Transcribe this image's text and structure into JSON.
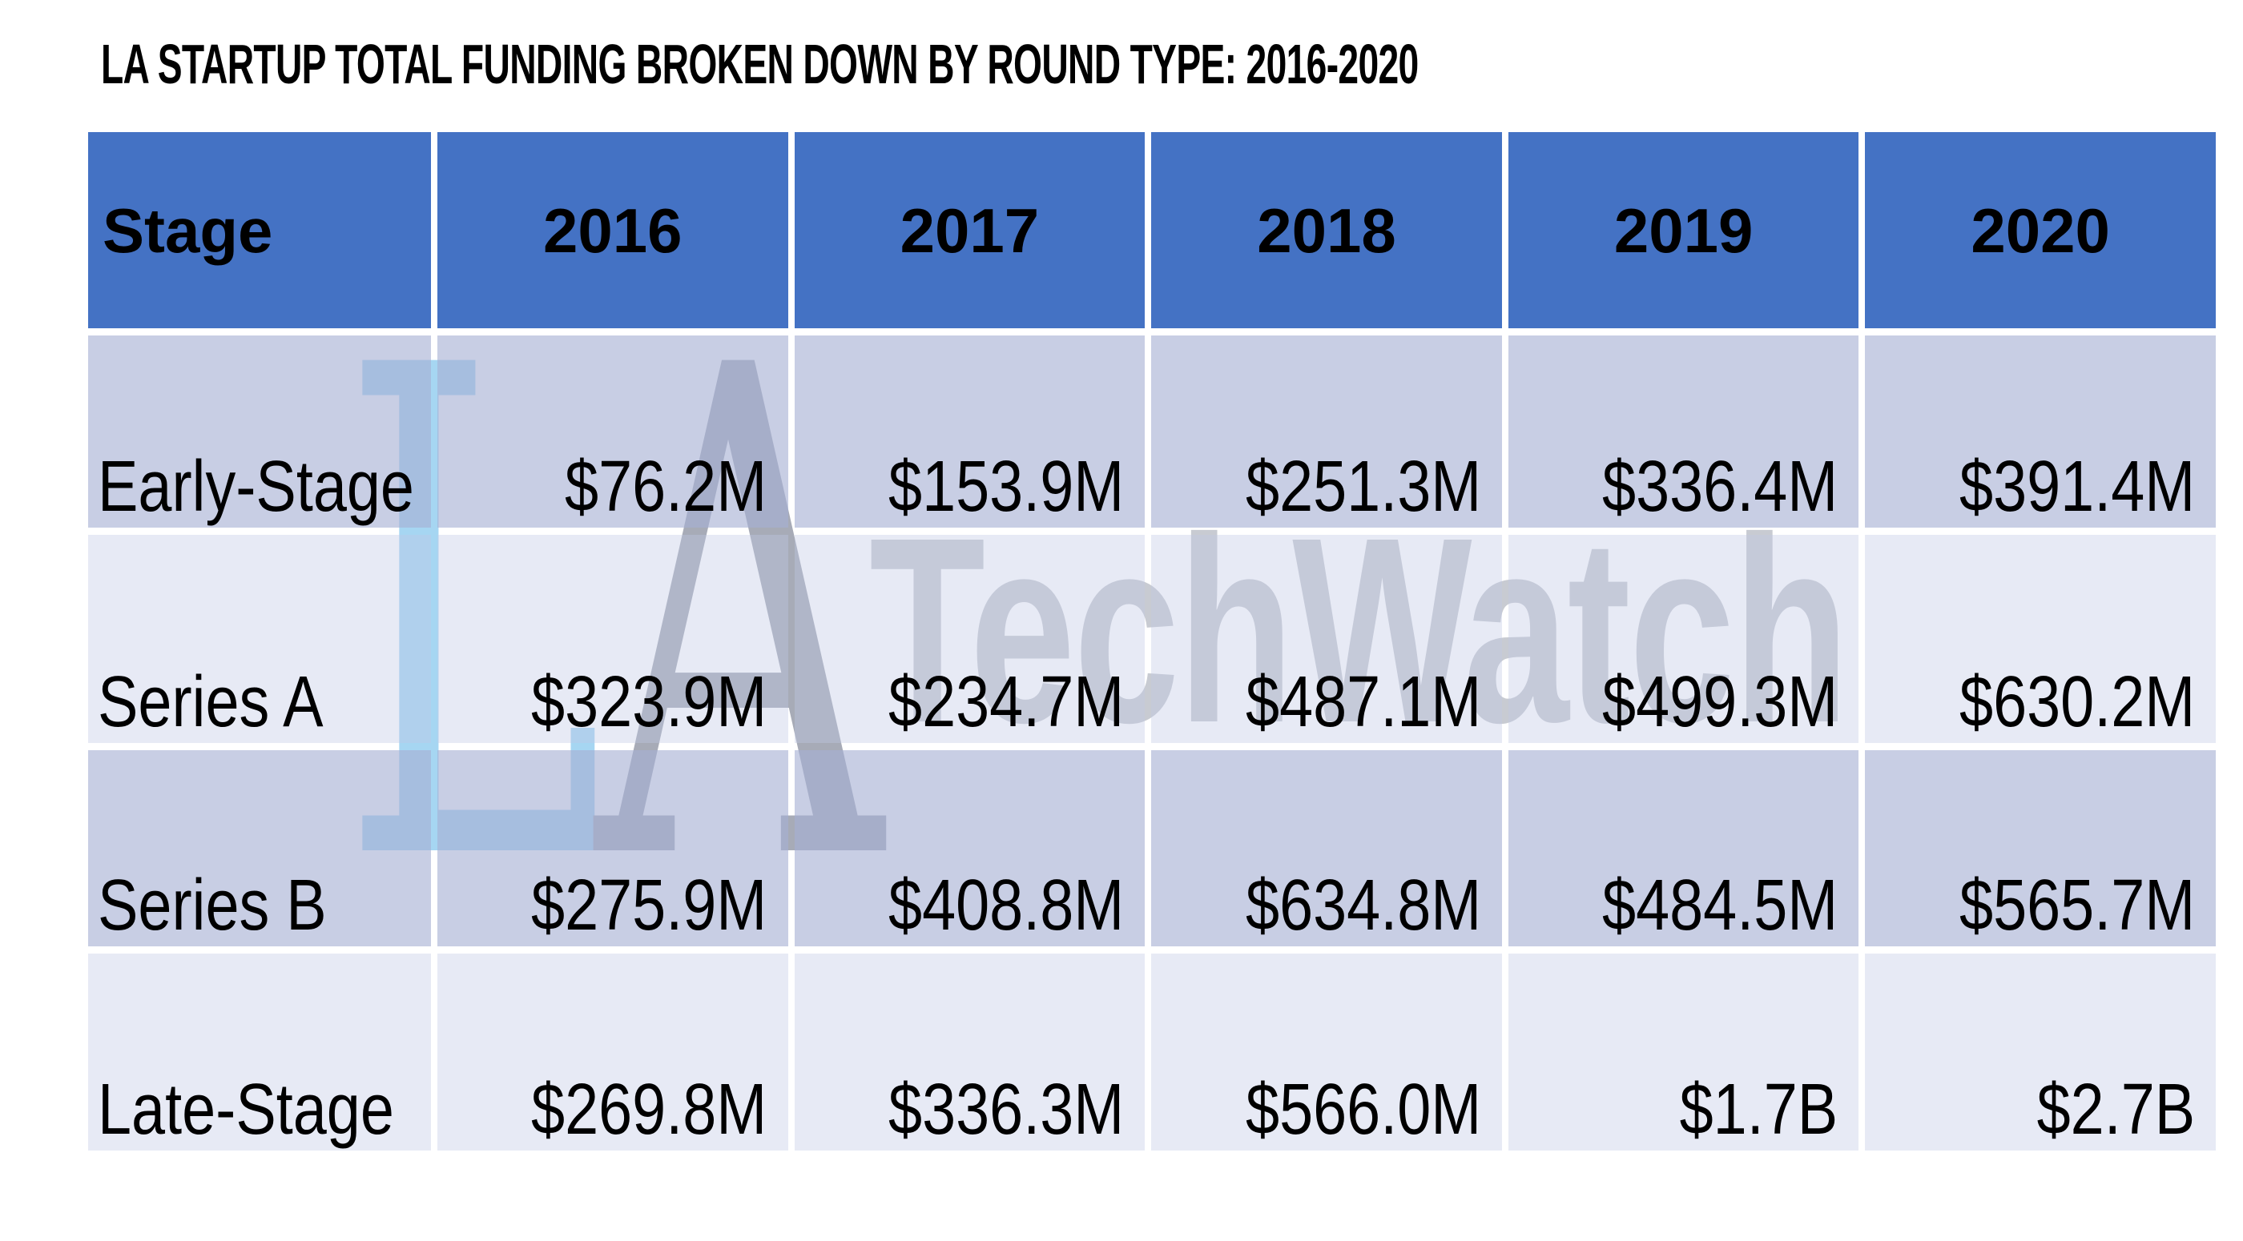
{
  "title": "LA STARTUP TOTAL FUNDING BROKEN DOWN BY ROUND TYPE: 2016-2020",
  "watermark": {
    "letter_l": "L",
    "letter_a": "A",
    "brand": "TechWatch"
  },
  "chart_data": {
    "type": "table",
    "title": "LA STARTUP TOTAL FUNDING BROKEN DOWN BY ROUND TYPE: 2016-2020",
    "columns": [
      "Stage",
      "2016",
      "2017",
      "2018",
      "2019",
      "2020"
    ],
    "rows": [
      {
        "stage": "Early-Stage",
        "values": [
          "$76.2M",
          "$153.9M",
          "$251.3M",
          "$336.4M",
          "$391.4M"
        ]
      },
      {
        "stage": "Series A",
        "values": [
          "$323.9M",
          "$234.7M",
          "$487.1M",
          "$499.3M",
          "$630.2M"
        ]
      },
      {
        "stage": "Series B",
        "values": [
          "$275.9M",
          "$408.8M",
          "$634.8M",
          "$484.5M",
          "$565.7M"
        ]
      },
      {
        "stage": "Late-Stage",
        "values": [
          "$269.8M",
          "$336.3M",
          "$566.0M",
          "$1.7B",
          "$2.7B"
        ]
      }
    ]
  },
  "colors": {
    "header-blue": "#4472c4",
    "band-dark": "#cdd3e8",
    "band-light": "#e9ebf5",
    "wm-l": "#a6d6f2",
    "wm-a": "#a7abb7",
    "wm-tw": "#c8cbd2",
    "text": "#000000",
    "background": "#ffffff"
  }
}
